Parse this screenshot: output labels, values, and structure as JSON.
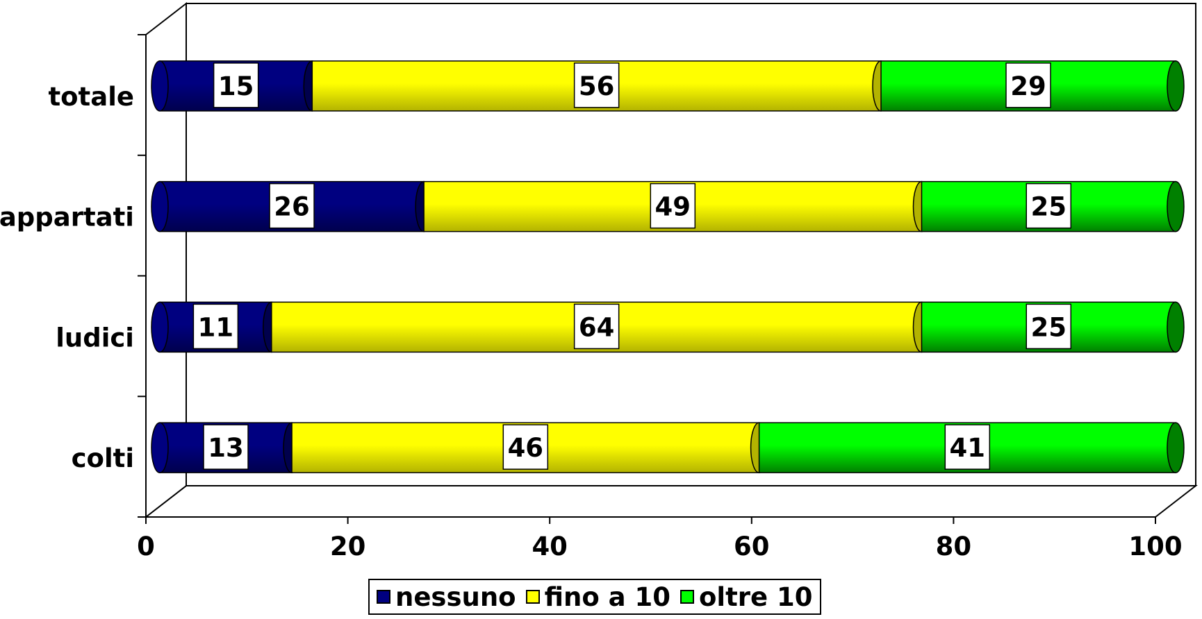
{
  "chart_data": {
    "type": "bar",
    "orientation": "horizontal",
    "stacked": true,
    "three_d": true,
    "categories": [
      "colti",
      "ludici",
      "appartati",
      "totale"
    ],
    "series": [
      {
        "name": "nessuno",
        "values": [
          13,
          11,
          26,
          15
        ],
        "color": "#000080",
        "shade": "#00004d"
      },
      {
        "name": "fino a 10",
        "values": [
          46,
          64,
          49,
          56
        ],
        "color": "#ffff00",
        "shade": "#b3b300"
      },
      {
        "name": "oltre 10",
        "values": [
          41,
          25,
          25,
          29
        ],
        "color": "#00ff00",
        "shade": "#008000"
      }
    ],
    "xlim": [
      0,
      100
    ],
    "x_ticks": [
      "0",
      "20",
      "40",
      "60",
      "80",
      "100"
    ],
    "grid": false,
    "legend_position": "bottom",
    "data_labels": true
  }
}
